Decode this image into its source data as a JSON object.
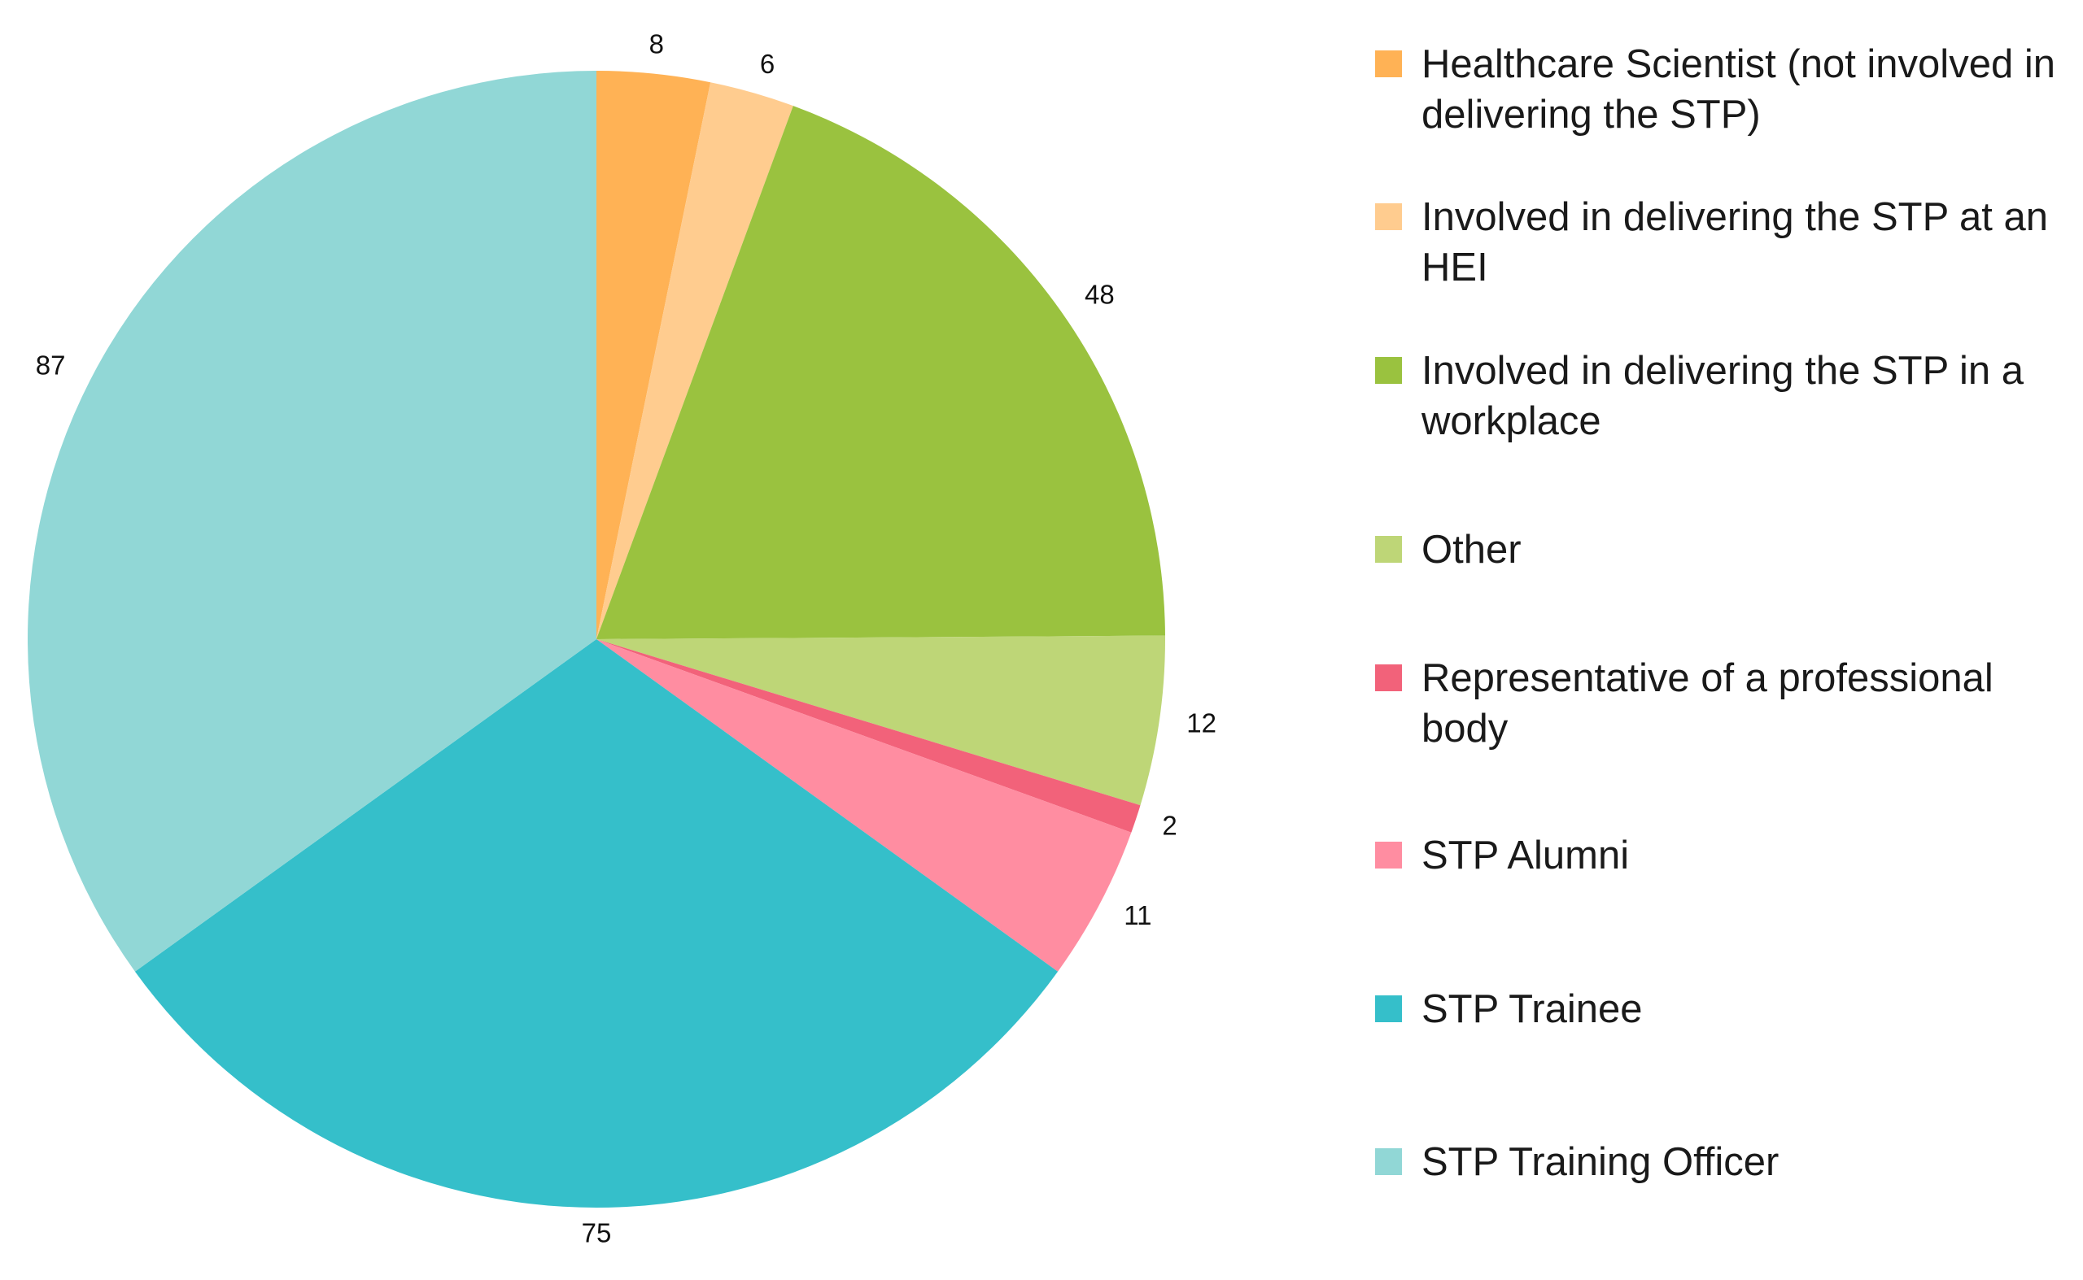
{
  "chart_data": {
    "type": "pie",
    "categories": [
      "Healthcare Scientist (not involved in delivering the STP)",
      "Involved in delivering the STP at an HEI",
      "Involved in delivering the STP in a workplace",
      "Other",
      "Representative of a professional body",
      "STP Alumni",
      "STP Trainee",
      "STP Training Officer"
    ],
    "values": [
      8,
      6,
      48,
      12,
      2,
      11,
      75,
      87
    ],
    "colors": [
      "#ffb255",
      "#ffcc8f",
      "#9ac23f",
      "#bed677",
      "#f2627a",
      "#ff8da1",
      "#35bfca",
      "#91d7d6"
    ],
    "legend": "right"
  }
}
